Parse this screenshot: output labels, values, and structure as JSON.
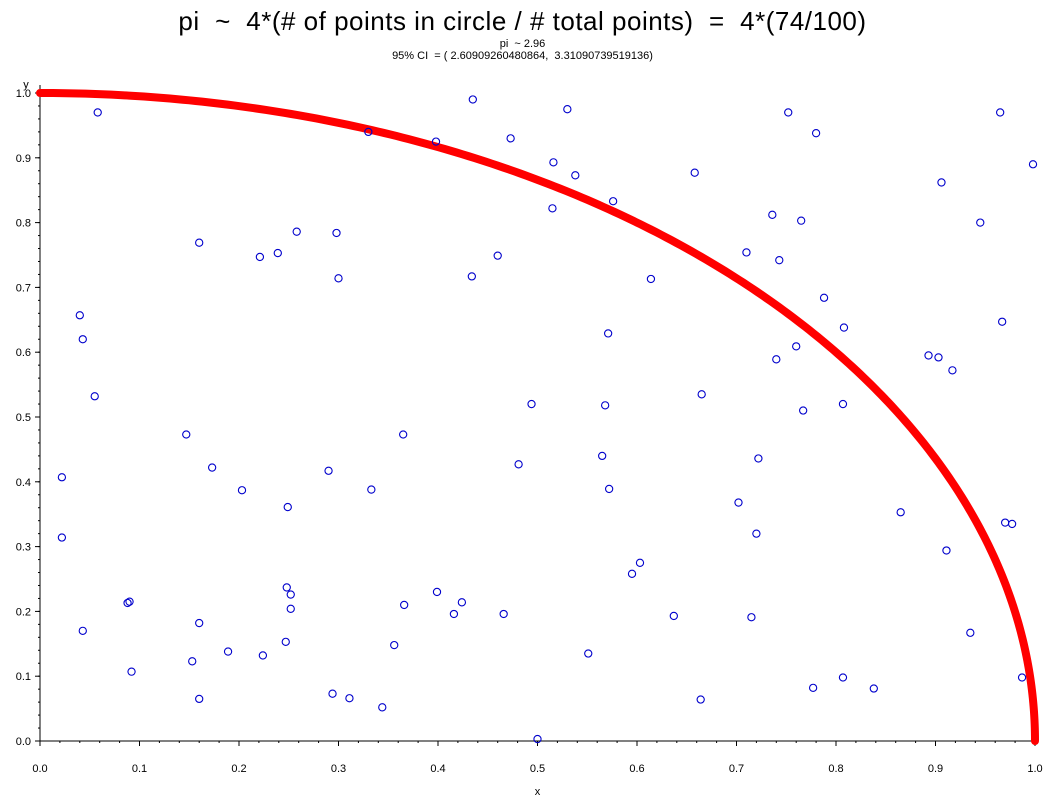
{
  "title": "pi  ~  4*(# of points in circle / # total points)  =  4*(74/100)",
  "subtitle_1": "pi  ~ 2.96",
  "subtitle_2": "95% CI  = ( 2.60909260480864,  3.31090739519136)",
  "colors": {
    "points": "#0000cc",
    "arc": "#ff0000",
    "axis": "#000000"
  },
  "chart_data": {
    "type": "scatter",
    "xlabel": "x",
    "ylabel": "y",
    "xlim": [
      0,
      1
    ],
    "ylim": [
      0,
      1
    ],
    "x_ticks": [
      "0.0",
      "0.1",
      "0.2",
      "0.3",
      "0.4",
      "0.5",
      "0.6",
      "0.7",
      "0.8",
      "0.9",
      "1.0"
    ],
    "y_ticks": [
      "0.0",
      "0.1",
      "0.2",
      "0.3",
      "0.4",
      "0.5",
      "0.6",
      "0.7",
      "0.8",
      "0.9",
      "1.0"
    ],
    "grid": false,
    "curve": {
      "type": "quarter-circle",
      "equation": "x^2 + y^2 = 1"
    },
    "points": [
      [
        0.058,
        0.97
      ],
      [
        0.435,
        0.99
      ],
      [
        0.53,
        0.975
      ],
      [
        0.752,
        0.97
      ],
      [
        0.965,
        0.97
      ],
      [
        0.998,
        0.89
      ],
      [
        0.33,
        0.94
      ],
      [
        0.398,
        0.925
      ],
      [
        0.473,
        0.93
      ],
      [
        0.78,
        0.938
      ],
      [
        0.516,
        0.893
      ],
      [
        0.538,
        0.873
      ],
      [
        0.658,
        0.877
      ],
      [
        0.906,
        0.862
      ],
      [
        0.576,
        0.833
      ],
      [
        0.515,
        0.822
      ],
      [
        0.736,
        0.812
      ],
      [
        0.765,
        0.803
      ],
      [
        0.945,
        0.8
      ],
      [
        0.258,
        0.786
      ],
      [
        0.298,
        0.784
      ],
      [
        0.16,
        0.769
      ],
      [
        0.221,
        0.747
      ],
      [
        0.239,
        0.753
      ],
      [
        0.46,
        0.749
      ],
      [
        0.71,
        0.754
      ],
      [
        0.743,
        0.742
      ],
      [
        0.3,
        0.714
      ],
      [
        0.434,
        0.717
      ],
      [
        0.614,
        0.713
      ],
      [
        0.788,
        0.684
      ],
      [
        0.04,
        0.657
      ],
      [
        0.967,
        0.647
      ],
      [
        0.808,
        0.638
      ],
      [
        0.571,
        0.629
      ],
      [
        0.043,
        0.62
      ],
      [
        0.76,
        0.609
      ],
      [
        0.893,
        0.595
      ],
      [
        0.903,
        0.592
      ],
      [
        0.74,
        0.589
      ],
      [
        0.917,
        0.572
      ],
      [
        0.665,
        0.535
      ],
      [
        0.055,
        0.532
      ],
      [
        0.494,
        0.52
      ],
      [
        0.807,
        0.52
      ],
      [
        0.568,
        0.518
      ],
      [
        0.767,
        0.51
      ],
      [
        0.147,
        0.473
      ],
      [
        0.365,
        0.473
      ],
      [
        0.565,
        0.44
      ],
      [
        0.722,
        0.436
      ],
      [
        0.481,
        0.427
      ],
      [
        0.173,
        0.422
      ],
      [
        0.29,
        0.417
      ],
      [
        0.022,
        0.407
      ],
      [
        0.203,
        0.387
      ],
      [
        0.333,
        0.388
      ],
      [
        0.572,
        0.389
      ],
      [
        0.702,
        0.368
      ],
      [
        0.249,
        0.361
      ],
      [
        0.865,
        0.353
      ],
      [
        0.97,
        0.337
      ],
      [
        0.977,
        0.335
      ],
      [
        0.72,
        0.32
      ],
      [
        0.022,
        0.314
      ],
      [
        0.911,
        0.294
      ],
      [
        0.603,
        0.275
      ],
      [
        0.595,
        0.258
      ],
      [
        0.248,
        0.237
      ],
      [
        0.252,
        0.226
      ],
      [
        0.399,
        0.23
      ],
      [
        0.09,
        0.215
      ],
      [
        0.088,
        0.213
      ],
      [
        0.424,
        0.214
      ],
      [
        0.366,
        0.21
      ],
      [
        0.252,
        0.204
      ],
      [
        0.416,
        0.196
      ],
      [
        0.466,
        0.196
      ],
      [
        0.637,
        0.193
      ],
      [
        0.715,
        0.191
      ],
      [
        0.16,
        0.182
      ],
      [
        0.043,
        0.17
      ],
      [
        0.935,
        0.167
      ],
      [
        0.247,
        0.153
      ],
      [
        0.356,
        0.148
      ],
      [
        0.189,
        0.138
      ],
      [
        0.551,
        0.135
      ],
      [
        0.224,
        0.132
      ],
      [
        0.153,
        0.123
      ],
      [
        0.092,
        0.107
      ],
      [
        0.987,
        0.098
      ],
      [
        0.807,
        0.098
      ],
      [
        0.777,
        0.082
      ],
      [
        0.838,
        0.081
      ],
      [
        0.294,
        0.073
      ],
      [
        0.311,
        0.066
      ],
      [
        0.16,
        0.065
      ],
      [
        0.664,
        0.064
      ],
      [
        0.344,
        0.052
      ],
      [
        0.5,
        0.003
      ]
    ]
  }
}
